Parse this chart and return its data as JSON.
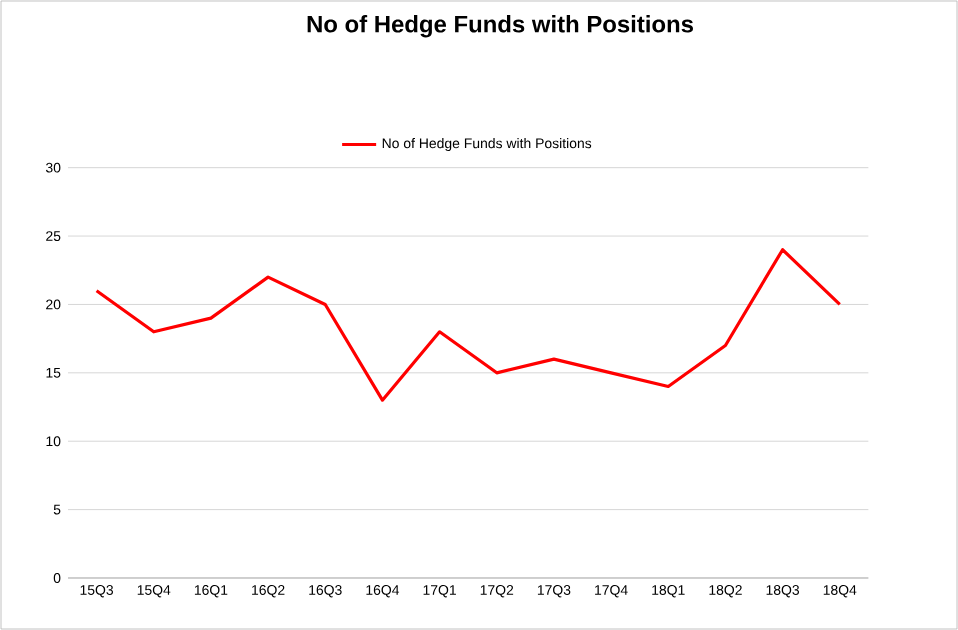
{
  "chart_data": {
    "type": "line",
    "title": "No of Hedge Funds with Positions",
    "categories": [
      "15Q3",
      "15Q4",
      "16Q1",
      "16Q2",
      "16Q3",
      "16Q4",
      "17Q1",
      "17Q2",
      "17Q3",
      "17Q4",
      "18Q1",
      "18Q2",
      "18Q3",
      "18Q4"
    ],
    "series": [
      {
        "name": "No of Hedge Funds with Positions",
        "color": "#ff0000",
        "values": [
          21,
          18,
          19,
          22,
          20,
          13,
          18,
          15,
          16,
          15,
          14,
          17,
          24,
          20
        ]
      }
    ],
    "ylim": [
      0,
      30
    ],
    "yticks": [
      0,
      5,
      10,
      15,
      20,
      25,
      30
    ],
    "grid": "y",
    "legend": "top",
    "marker": "none",
    "line_style": "solid"
  }
}
